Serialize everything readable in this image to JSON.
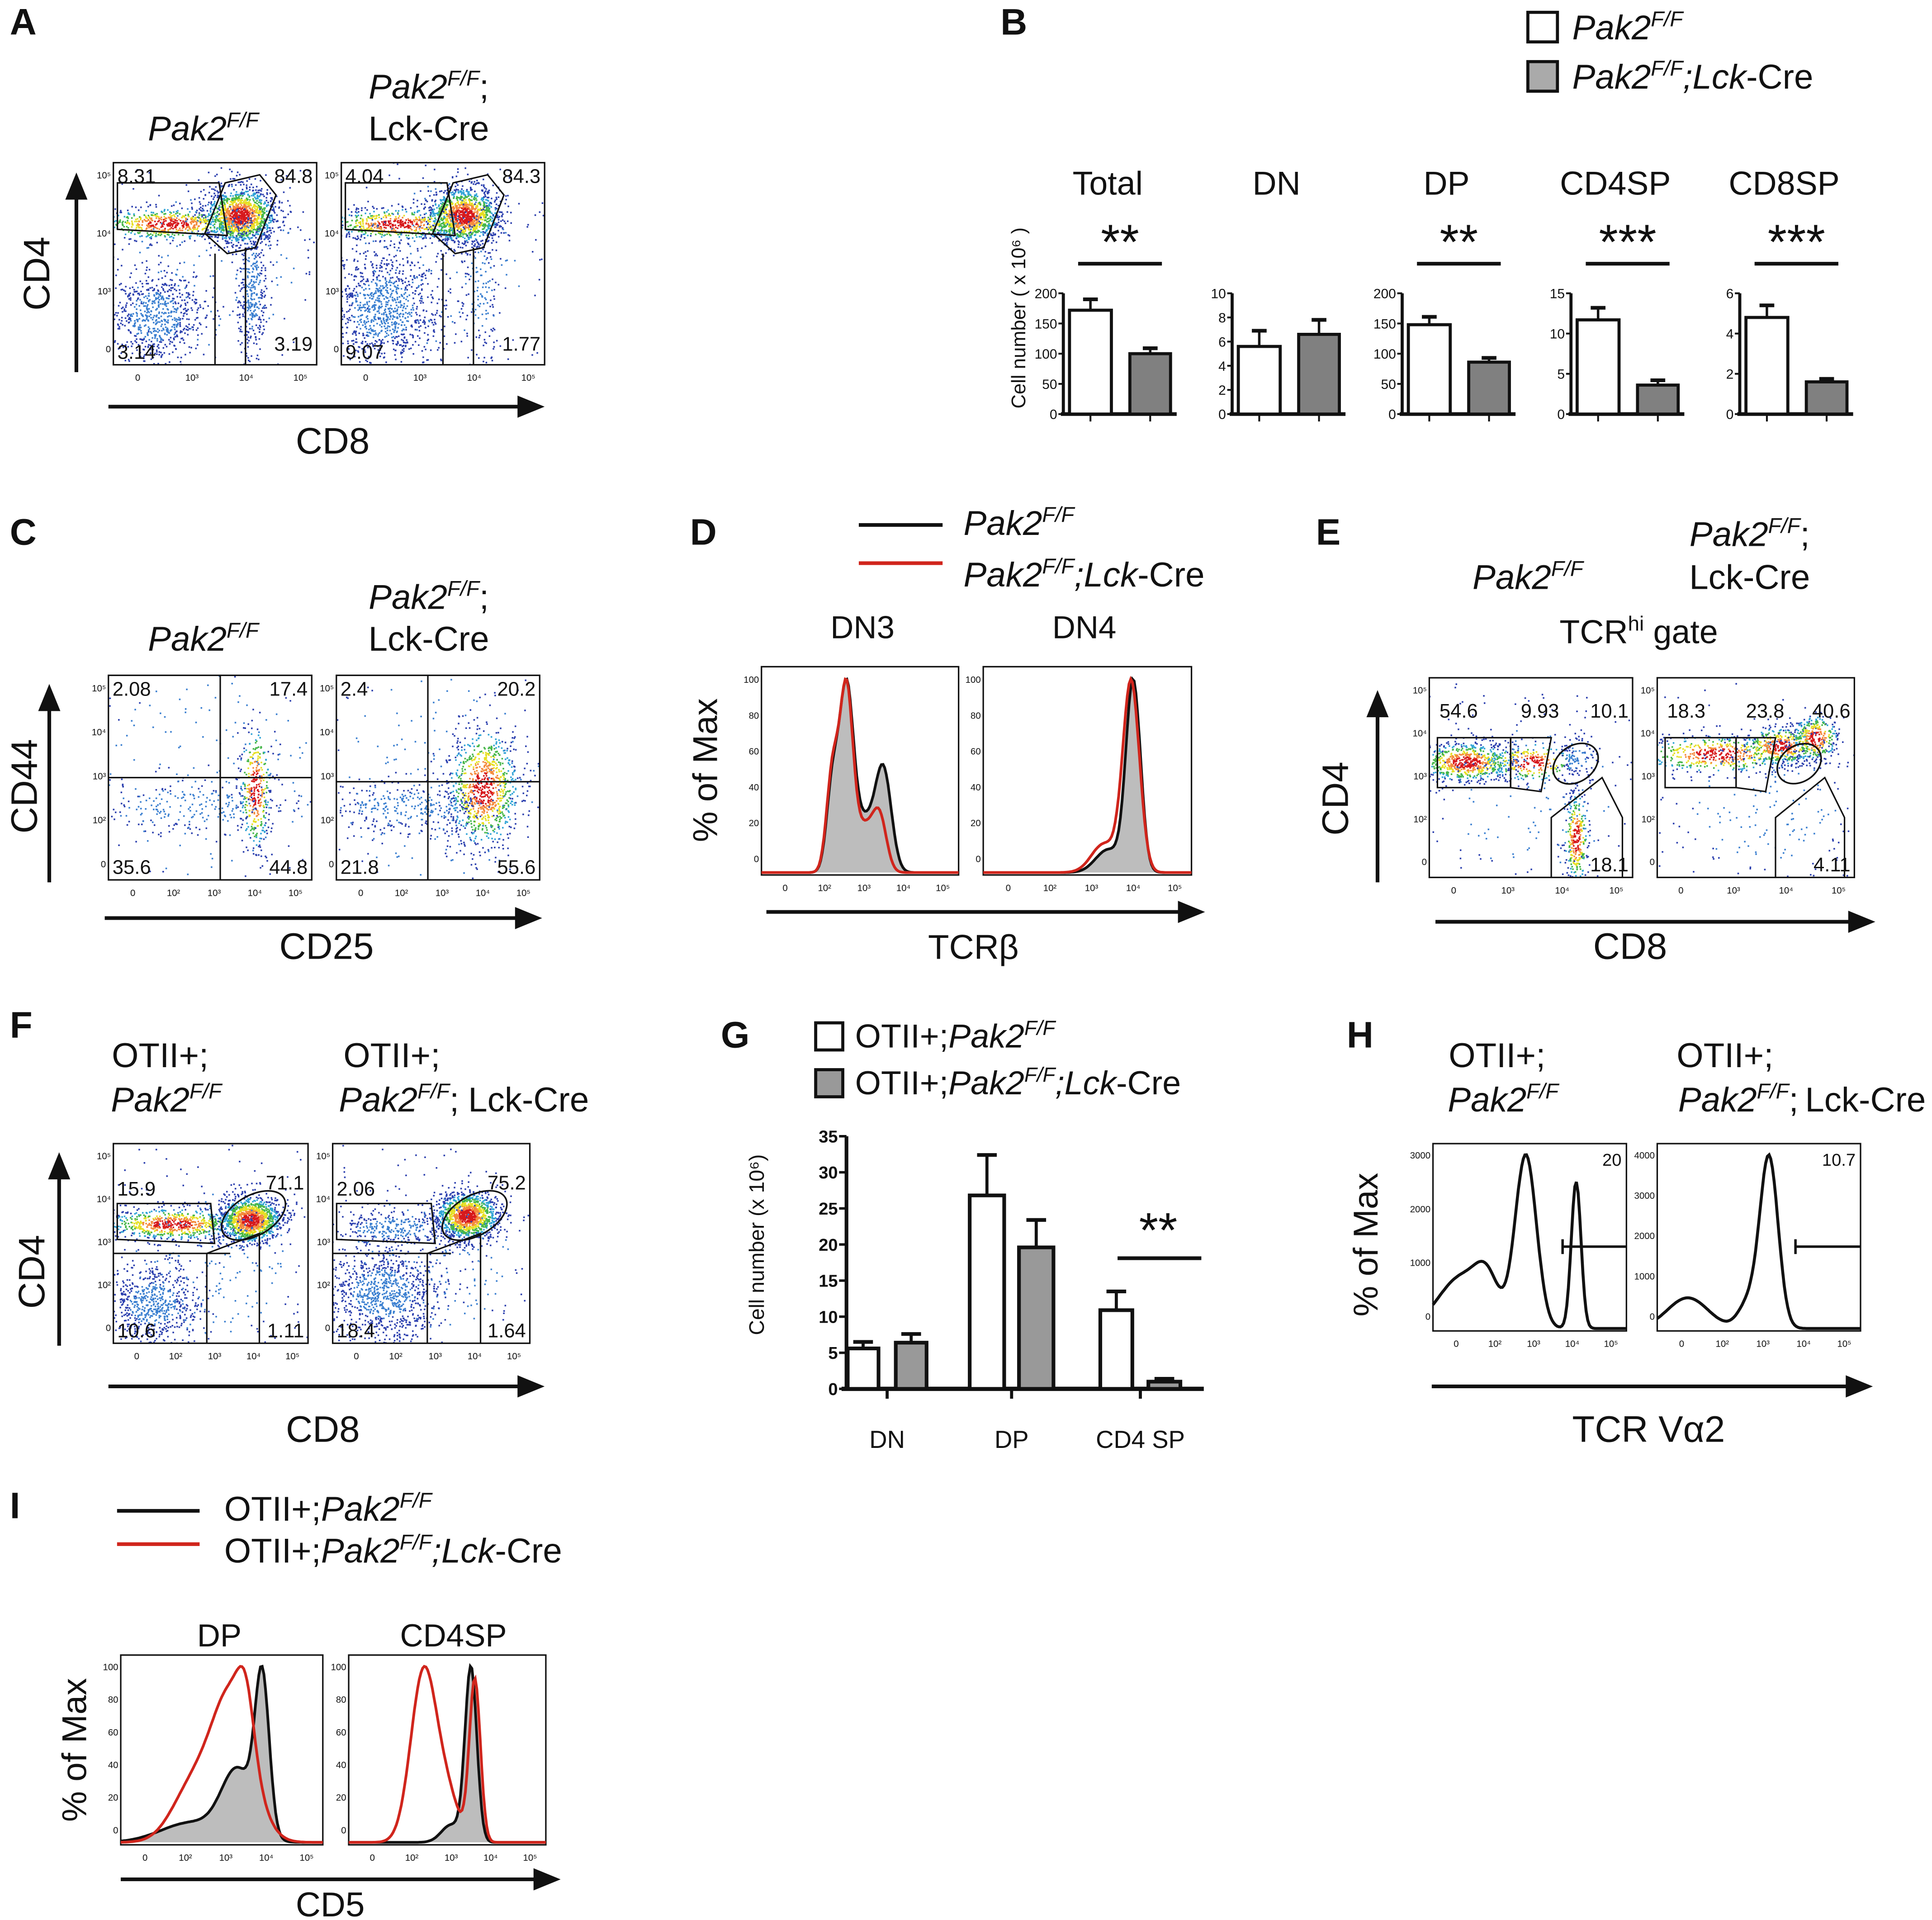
{
  "panel_labels": {
    "A": "A",
    "B": "B",
    "C": "C",
    "D": "D",
    "E": "E",
    "F": "F",
    "G": "G",
    "H": "H",
    "I": "I"
  },
  "genotypes": {
    "ctrl": "Pak2F/F",
    "ctrl_semi": "Pak2F/F;",
    "cre": "Lck-Cre",
    "ko": "Pak2F/F;Lck-Cre",
    "ot_prefix": "OTII+;",
    "ot_ctrl": "OTII+;Pak2F/F",
    "ot_ko": "OTII+;Pak2F/F;Lck-Cre"
  },
  "colors": {
    "ctrl_fill": "#ffffff",
    "ko_fill": "#808080",
    "ctrl_line": "#111111",
    "ko_line": "#d0251c",
    "hist_fill": "#bdbdbd"
  },
  "chart_data": [
    {
      "panel": "A",
      "type": "scatter",
      "subtype": "flow-cytometry-dot-plot",
      "xlabel": "CD8",
      "ylabel": "CD4",
      "scale": "biexponential",
      "xticks": [
        "0",
        "10³",
        "10⁴",
        "10⁵"
      ],
      "yticks": [
        "10⁵",
        "10⁴",
        "10³",
        "0"
      ],
      "plots": [
        {
          "title": "Pak2F/F",
          "quadrants": {
            "cd4sp": "8.31",
            "dp": "84.8",
            "dn": "3.14",
            "cd8sp": "3.19"
          }
        },
        {
          "title": "Pak2F/F;Lck-Cre",
          "quadrants": {
            "cd4sp": "4.04",
            "dp": "84.3",
            "dn": "9.07",
            "cd8sp": "1.77"
          }
        }
      ]
    },
    {
      "panel": "B",
      "type": "bar",
      "ylabel": "Cell number ( x 10⁶ )",
      "legend": [
        "Pak2F/F",
        "Pak2F/F;Lck-Cre"
      ],
      "legend_placement": "top-right",
      "charts": [
        {
          "title": "Total",
          "ylim": [
            0,
            200
          ],
          "yticks": [
            "0",
            "50",
            "100",
            "150",
            "200"
          ],
          "values": [
            172,
            100
          ],
          "errors": [
            18,
            9
          ],
          "significance": "**"
        },
        {
          "title": "DN",
          "ylim": [
            0,
            10
          ],
          "yticks": [
            "0",
            "2",
            "4",
            "6",
            "8",
            "10"
          ],
          "values": [
            5.6,
            6.6
          ],
          "errors": [
            1.3,
            1.2
          ],
          "significance": ""
        },
        {
          "title": "DP",
          "ylim": [
            0,
            200
          ],
          "yticks": [
            "0",
            "50",
            "100",
            "150",
            "200"
          ],
          "values": [
            148,
            86
          ],
          "errors": [
            13,
            7
          ],
          "significance": "**"
        },
        {
          "title": "CD4SP",
          "ylim": [
            0,
            15
          ],
          "yticks": [
            "0",
            "5",
            "10",
            "15"
          ],
          "values": [
            11.7,
            3.6
          ],
          "errors": [
            1.5,
            0.6
          ],
          "significance": "***"
        },
        {
          "title": "CD8SP",
          "ylim": [
            0,
            6
          ],
          "yticks": [
            "0",
            "2",
            "4",
            "6"
          ],
          "values": [
            4.8,
            1.6
          ],
          "errors": [
            0.6,
            0.15
          ],
          "significance": "***"
        }
      ]
    },
    {
      "panel": "C",
      "type": "scatter",
      "subtype": "flow-cytometry-dot-plot",
      "xlabel": "CD25",
      "ylabel": "CD44",
      "xticks": [
        "0",
        "10²",
        "10³",
        "10⁴",
        "10⁵"
      ],
      "yticks": [
        "10⁵",
        "10⁴",
        "10³",
        "10²",
        "0"
      ],
      "plots": [
        {
          "title": "Pak2F/F",
          "quadrants": {
            "ul": "2.08",
            "ur": "17.4",
            "ll": "35.6",
            "lr": "44.8"
          }
        },
        {
          "title": "Pak2F/F;Lck-Cre",
          "quadrants": {
            "ul": "2.4",
            "ur": "20.2",
            "ll": "21.8",
            "lr": "55.6"
          }
        }
      ]
    },
    {
      "panel": "D",
      "type": "line",
      "subtype": "histogram",
      "xlabel": "TCRβ",
      "ylabel": "% of Max",
      "ylim": [
        0,
        100
      ],
      "yticks": [
        "0",
        "20",
        "40",
        "60",
        "80",
        "100"
      ],
      "xticks": [
        "0",
        "10²",
        "10³",
        "10⁴",
        "10⁵"
      ],
      "legend": [
        "Pak2F/F",
        "Pak2F/F;Lck-Cre"
      ],
      "legend_placement": "top",
      "plots": [
        {
          "title": "DN3"
        },
        {
          "title": "DN4"
        }
      ]
    },
    {
      "panel": "E",
      "type": "scatter",
      "subtype": "flow-cytometry-dot-plot",
      "xlabel": "CD8",
      "ylabel": "CD4",
      "gate_title": "TCRhi gate",
      "xticks": [
        "0",
        "10³",
        "10⁴",
        "10⁵"
      ],
      "yticks": [
        "10⁵",
        "10⁴",
        "10³",
        "10²",
        "0"
      ],
      "plots": [
        {
          "title": "Pak2F/F",
          "gates": [
            "54.6",
            "9.93",
            "10.1",
            "18.1"
          ]
        },
        {
          "title": "Pak2F/F;Lck-Cre",
          "gates": [
            "18.3",
            "23.8",
            "40.6",
            "4.11"
          ]
        }
      ]
    },
    {
      "panel": "F",
      "type": "scatter",
      "subtype": "flow-cytometry-dot-plot",
      "xlabel": "CD8",
      "ylabel": "CD4",
      "xticks": [
        "0",
        "10²",
        "10³",
        "10⁴",
        "10⁵"
      ],
      "yticks": [
        "10⁵",
        "10⁴",
        "10³",
        "10²",
        "0"
      ],
      "plots": [
        {
          "title": "OTII+;Pak2F/F",
          "quadrants": {
            "cd4sp": "15.9",
            "dp": "71.1",
            "dn": "10.6",
            "cd8sp": "1.11"
          }
        },
        {
          "title": "OTII+;Pak2F/F;Lck-Cre",
          "quadrants": {
            "cd4sp": "2.06",
            "dp": "75.2",
            "dn": "18.4",
            "cd8sp": "1.64"
          }
        }
      ]
    },
    {
      "panel": "G",
      "type": "bar",
      "ylabel": "Cell number (x 10⁶)",
      "ylim": [
        0,
        35
      ],
      "yticks": [
        "0",
        "5",
        "10",
        "15",
        "20",
        "25",
        "30",
        "35"
      ],
      "categories": [
        "DN",
        "DP",
        "CD4 SP"
      ],
      "legend_placement": "top",
      "series": [
        {
          "name": "OTII+;Pak2F/F",
          "values": [
            5.6,
            26.8,
            10.9
          ],
          "errors": [
            0.9,
            5.6,
            2.6
          ]
        },
        {
          "name": "OTII+;Pak2F/F;Lck-Cre",
          "values": [
            6.4,
            19.6,
            1.0
          ],
          "errors": [
            1.2,
            3.8,
            0.4
          ]
        }
      ],
      "significance": [
        {
          "category": "CD4 SP",
          "label": "**"
        }
      ]
    },
    {
      "panel": "H",
      "type": "line",
      "subtype": "histogram",
      "xlabel": "TCR Vα2",
      "ylabel": "% of Max",
      "yticks": [
        "0",
        "1000",
        "2000",
        "3000"
      ],
      "yticks2": [
        "0",
        "1000",
        "2000",
        "3000",
        "4000"
      ],
      "xticks": [
        "0",
        "10²",
        "10³",
        "10⁴",
        "10⁵"
      ],
      "plots": [
        {
          "title": "OTII+;Pak2F/F",
          "gate": "20"
        },
        {
          "title": "OTII+;Pak2F/F;Lck-Cre",
          "gate": "10.7"
        }
      ]
    },
    {
      "panel": "I",
      "type": "line",
      "subtype": "histogram",
      "xlabel": "CD5",
      "ylabel": "% of Max",
      "ylim": [
        0,
        100
      ],
      "yticks": [
        "0",
        "20",
        "40",
        "60",
        "80",
        "100"
      ],
      "xticks": [
        "0",
        "10²",
        "10³",
        "10⁴",
        "10⁵"
      ],
      "legend": [
        "OTII+;Pak2F/F",
        "OTII+;Pak2F/F;Lck-Cre"
      ],
      "legend_placement": "top-left",
      "plots": [
        {
          "title": "DP"
        },
        {
          "title": "CD4SP"
        }
      ]
    }
  ]
}
